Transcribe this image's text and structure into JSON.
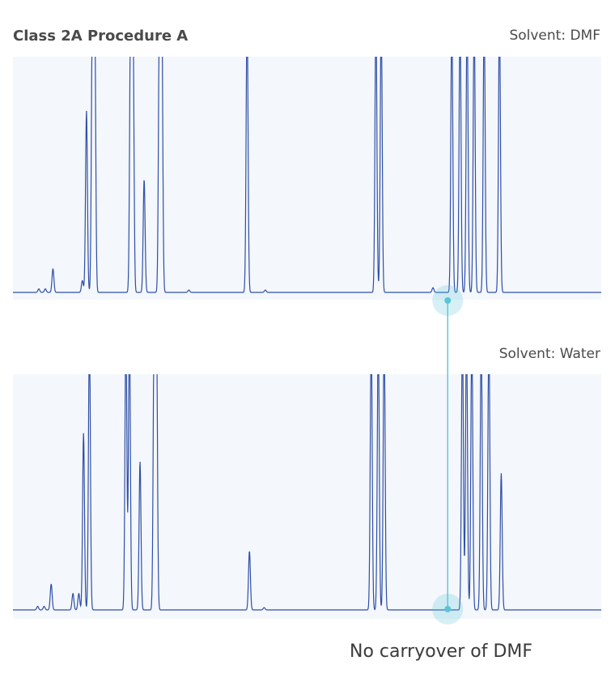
{
  "header": {
    "title": "Class 2A Procedure A"
  },
  "footer": {
    "note": "No carryover of DMF"
  },
  "colors": {
    "panel_bg": "#f4f7fb",
    "trace": "#2f4fa8",
    "highlight": "#5bc4d8"
  },
  "chart_data": [
    {
      "type": "line",
      "panel_label": "Solvent: DMF",
      "xlim": [
        0,
        1
      ],
      "ylim": [
        0,
        1
      ],
      "baseline": 0.03,
      "peaks": [
        {
          "x": 0.044,
          "h": 0.015
        },
        {
          "x": 0.055,
          "h": 0.015
        },
        {
          "x": 0.068,
          "h": 0.1
        },
        {
          "x": 0.118,
          "h": 0.05
        },
        {
          "x": 0.125,
          "h": 0.77
        },
        {
          "x": 0.135,
          "h": 1.2
        },
        {
          "x": 0.139,
          "h": 1.2
        },
        {
          "x": 0.2,
          "h": 1.2
        },
        {
          "x": 0.204,
          "h": 1.2
        },
        {
          "x": 0.223,
          "h": 0.48
        },
        {
          "x": 0.249,
          "h": 1.2
        },
        {
          "x": 0.253,
          "h": 1.2
        },
        {
          "x": 0.299,
          "h": 0.01
        },
        {
          "x": 0.398,
          "h": 1.2
        },
        {
          "x": 0.429,
          "h": 0.01
        },
        {
          "x": 0.617,
          "h": 1.2
        },
        {
          "x": 0.626,
          "h": 1.2
        },
        {
          "x": 0.714,
          "h": 0.02
        },
        {
          "x": 0.746,
          "h": 1.2
        },
        {
          "x": 0.76,
          "h": 1.2
        },
        {
          "x": 0.772,
          "h": 1.2
        },
        {
          "x": 0.784,
          "h": 1.2
        },
        {
          "x": 0.801,
          "h": 1.2
        },
        {
          "x": 0.827,
          "h": 1.2
        }
      ]
    },
    {
      "type": "line",
      "panel_label": "Solvent: Water",
      "xlim": [
        0,
        1
      ],
      "ylim": [
        0,
        1
      ],
      "baseline": 0.03,
      "peaks": [
        {
          "x": 0.042,
          "h": 0.015
        },
        {
          "x": 0.053,
          "h": 0.015
        },
        {
          "x": 0.065,
          "h": 0.11
        },
        {
          "x": 0.102,
          "h": 0.07
        },
        {
          "x": 0.112,
          "h": 0.07
        },
        {
          "x": 0.12,
          "h": 0.75
        },
        {
          "x": 0.13,
          "h": 1.2
        },
        {
          "x": 0.192,
          "h": 1.2
        },
        {
          "x": 0.198,
          "h": 1.2
        },
        {
          "x": 0.216,
          "h": 0.63
        },
        {
          "x": 0.24,
          "h": 1.2
        },
        {
          "x": 0.244,
          "h": 1.2
        },
        {
          "x": 0.402,
          "h": 0.25
        },
        {
          "x": 0.427,
          "h": 0.01
        },
        {
          "x": 0.609,
          "h": 1.2
        },
        {
          "x": 0.621,
          "h": 1.2
        },
        {
          "x": 0.631,
          "h": 1.2
        },
        {
          "x": 0.764,
          "h": 1.2
        },
        {
          "x": 0.771,
          "h": 1.2
        },
        {
          "x": 0.78,
          "h": 1.2
        },
        {
          "x": 0.796,
          "h": 1.2
        },
        {
          "x": 0.809,
          "h": 1.2
        },
        {
          "x": 0.83,
          "h": 0.58
        }
      ]
    }
  ]
}
